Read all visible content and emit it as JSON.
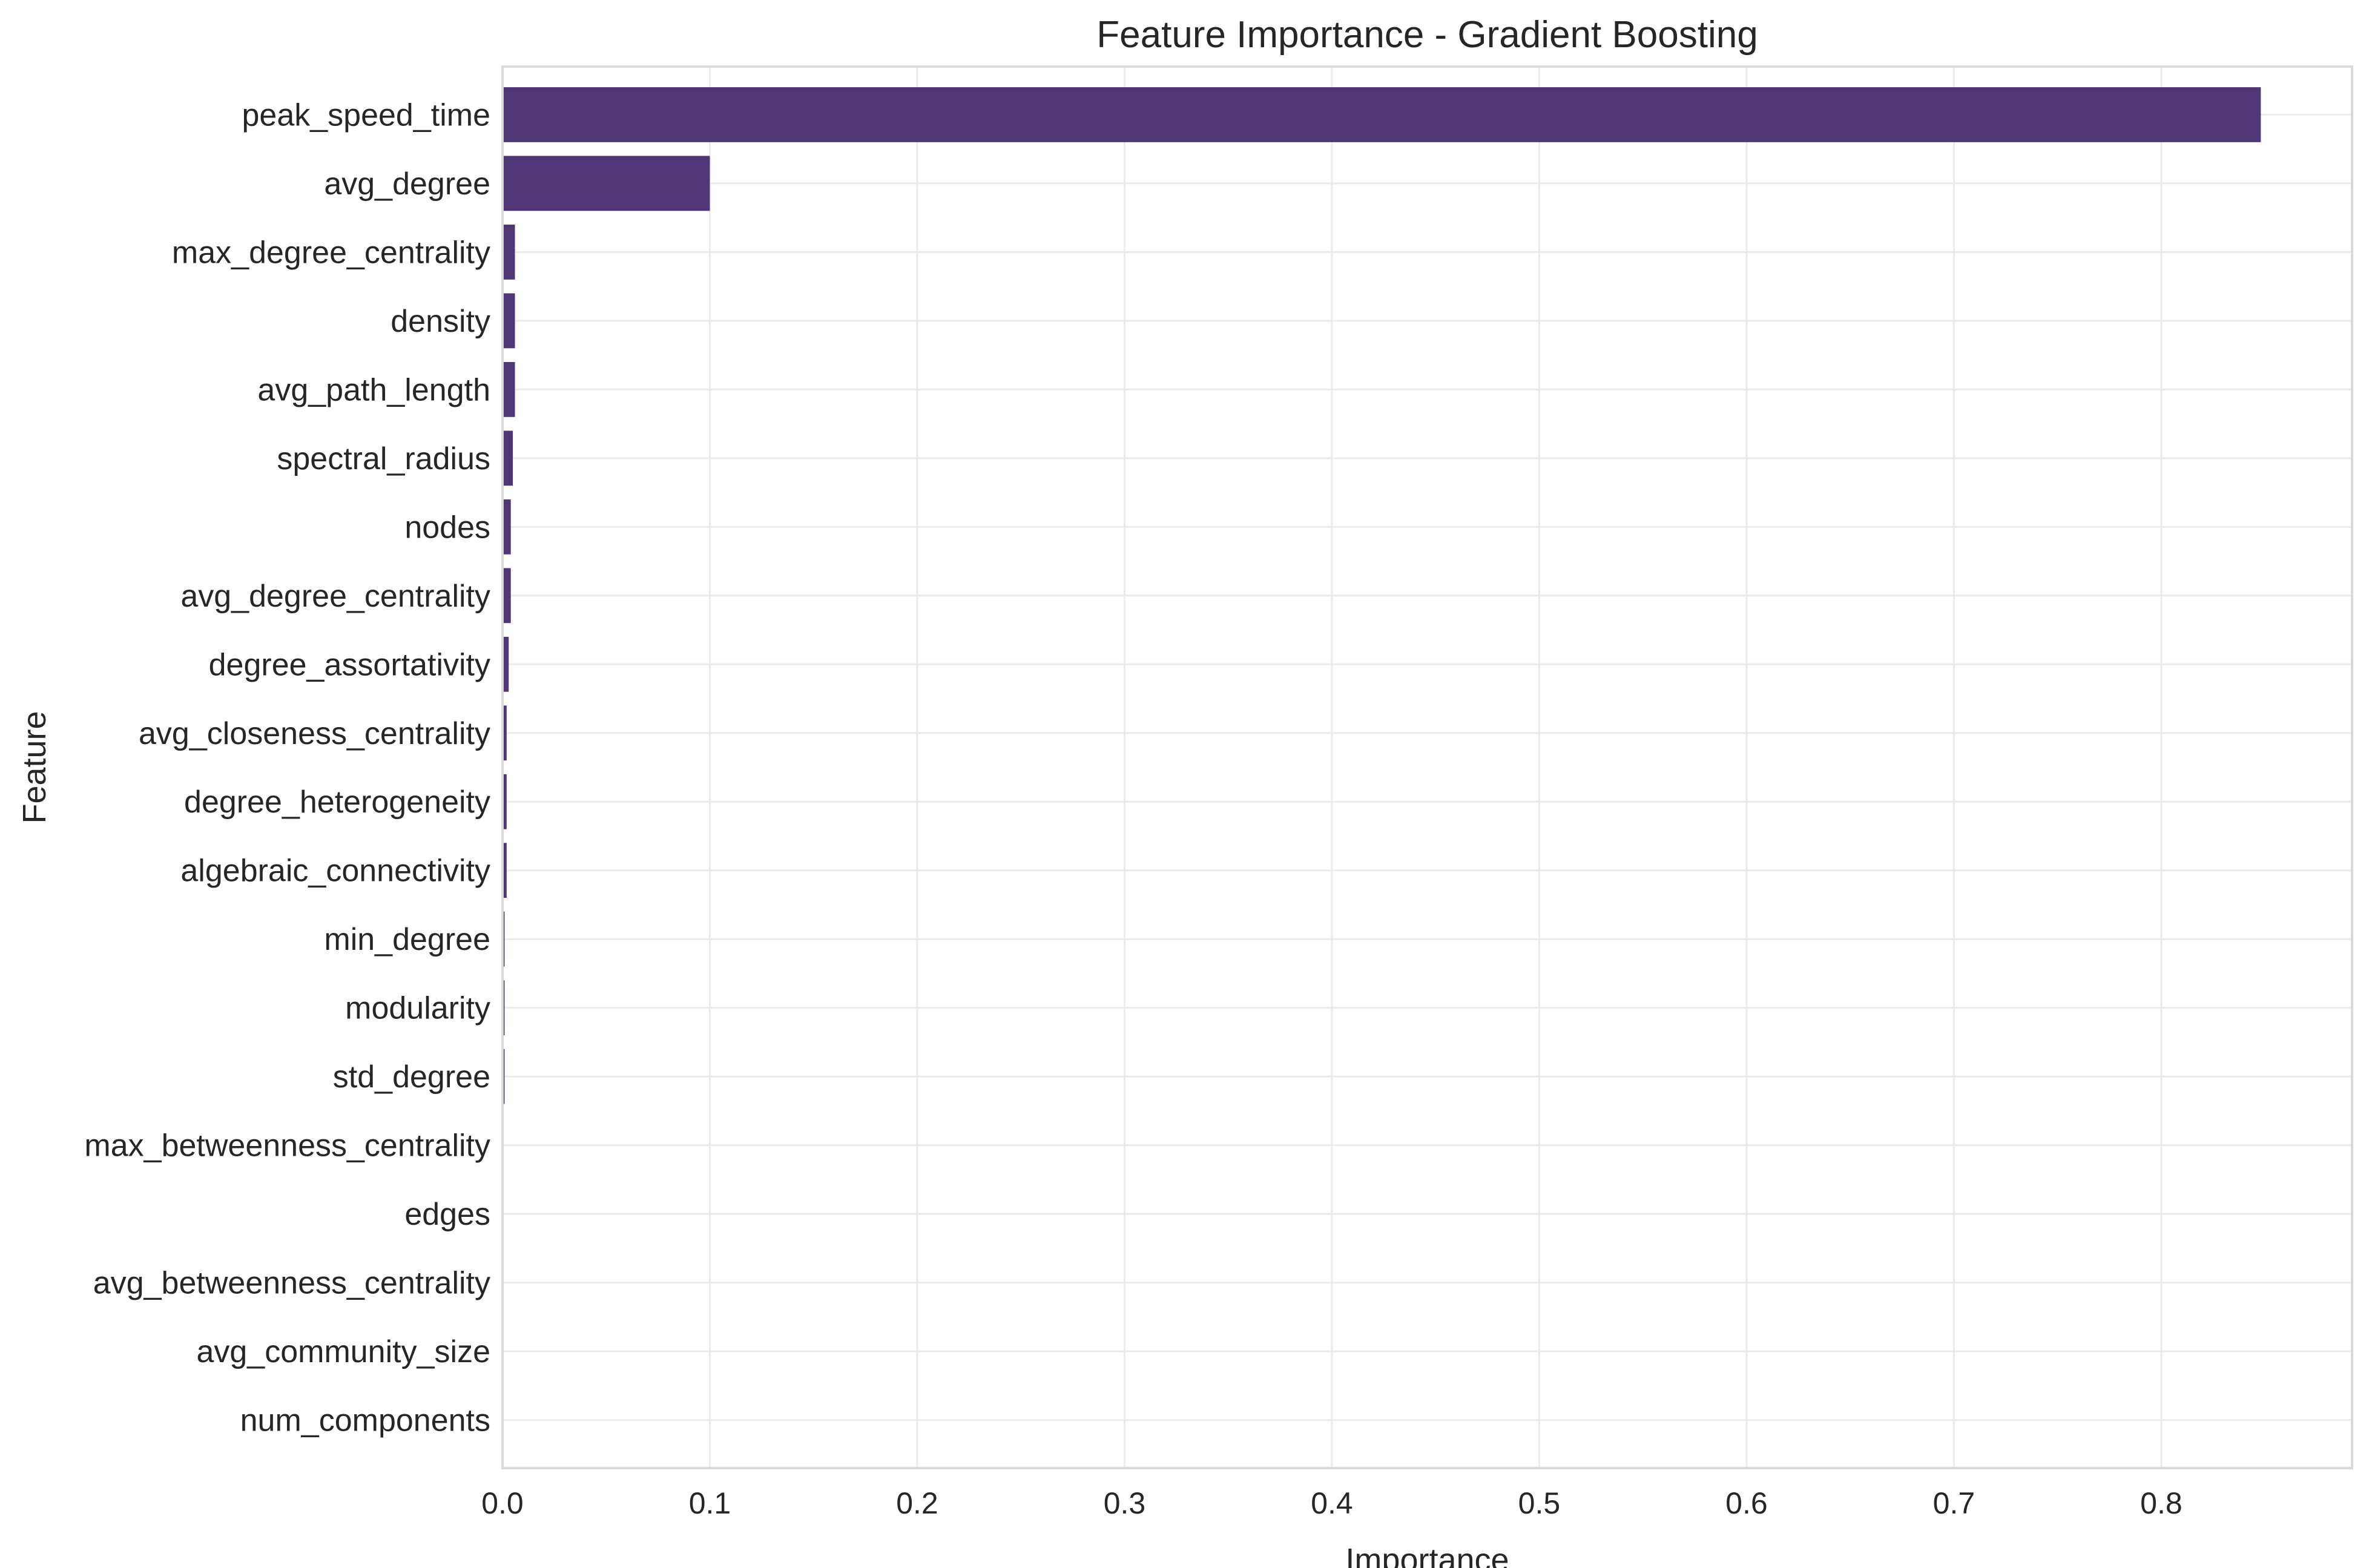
{
  "chart_data": {
    "type": "bar",
    "orientation": "horizontal",
    "title": "Feature Importance - Gradient Boosting",
    "xlabel": "Importance",
    "ylabel": "Feature",
    "xlim": [
      0,
      0.892
    ],
    "xticks": [
      0.0,
      0.1,
      0.2,
      0.3,
      0.4,
      0.5,
      0.6,
      0.7,
      0.8
    ],
    "xtick_labels": [
      "0.0",
      "0.1",
      "0.2",
      "0.3",
      "0.4",
      "0.5",
      "0.6",
      "0.7",
      "0.8"
    ],
    "grid": true,
    "bar_color": "#4f3676",
    "categories": [
      "peak_speed_time",
      "avg_degree",
      "max_degree_centrality",
      "density",
      "avg_path_length",
      "spectral_radius",
      "nodes",
      "avg_degree_centrality",
      "degree_assortativity",
      "avg_closeness_centrality",
      "degree_heterogeneity",
      "algebraic_connectivity",
      "min_degree",
      "modularity",
      "std_degree",
      "max_betweenness_centrality",
      "edges",
      "avg_betweenness_centrality",
      "avg_community_size",
      "num_components"
    ],
    "values": [
      0.848,
      0.1,
      0.006,
      0.006,
      0.006,
      0.005,
      0.004,
      0.004,
      0.003,
      0.002,
      0.002,
      0.002,
      0.001,
      0.001,
      0.001,
      0.0,
      0.0,
      0.0,
      0.0,
      0.0
    ]
  }
}
